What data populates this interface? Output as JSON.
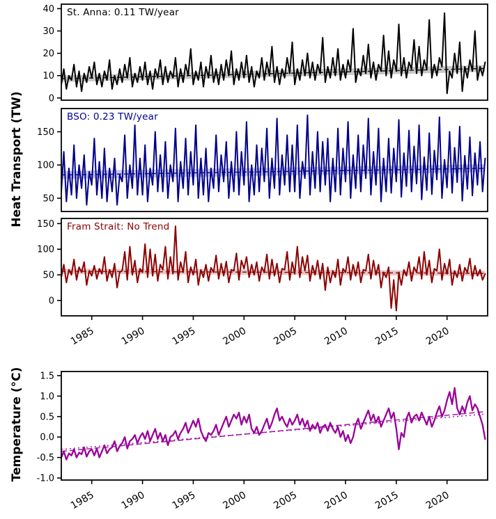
{
  "labels": {
    "heat_axis": "Heat Transport (TW)",
    "temp_axis": "Temperature (°C)"
  },
  "chart_data": {
    "type": "line",
    "x_range": [
      1982,
      2024
    ],
    "x_ticks": [
      1985,
      1990,
      1995,
      2000,
      2005,
      2010,
      2015,
      2020
    ],
    "x_tick_labels": [
      "1985",
      "1990",
      "1995",
      "2000",
      "2005",
      "2010",
      "2015",
      "2020"
    ],
    "panels": [
      {
        "name": "st-anna",
        "annotation": "St. Anna: 0.11 TW/year",
        "color": "#000000",
        "ylim": [
          -1,
          42
        ],
        "yticks": [
          0,
          10,
          20,
          30,
          40
        ],
        "ytick_labels": [
          "0",
          "10",
          "20",
          "30",
          "40"
        ],
        "x_start": 1982,
        "x_step": 0.25,
        "trends": [
          {
            "start": 8.6,
            "end": 13.2,
            "band": 1.5,
            "dash": "6,4"
          }
        ],
        "values": [
          6,
          13,
          4,
          10,
          8,
          15,
          5,
          12,
          3,
          11,
          7,
          14,
          9,
          16,
          6,
          11,
          5,
          12,
          8,
          17,
          4,
          10,
          6,
          13,
          7,
          15,
          9,
          18,
          5,
          11,
          7,
          14,
          8,
          16,
          6,
          12,
          4,
          13,
          9,
          17,
          6,
          14,
          7,
          12,
          9,
          18,
          5,
          13,
          7,
          15,
          10,
          22,
          6,
          12,
          8,
          16,
          5,
          14,
          9,
          19,
          7,
          13,
          6,
          15,
          8,
          17,
          10,
          21,
          6,
          13,
          8,
          16,
          9,
          19,
          7,
          14,
          5,
          12,
          9,
          18,
          8,
          16,
          10,
          23,
          7,
          14,
          6,
          13,
          9,
          18,
          11,
          25,
          6,
          13,
          8,
          17,
          10,
          20,
          9,
          16,
          8,
          15,
          11,
          27,
          7,
          14,
          9,
          18,
          10,
          22,
          8,
          15,
          9,
          17,
          12,
          31,
          7,
          13,
          10,
          19,
          11,
          24,
          9,
          16,
          8,
          15,
          12,
          28,
          10,
          21,
          9,
          17,
          12,
          33,
          10,
          18,
          9,
          16,
          13,
          26,
          11,
          23,
          10,
          17,
          13,
          35,
          9,
          15,
          10,
          18,
          14,
          38,
          2,
          12,
          9,
          20,
          11,
          25,
          3,
          14,
          9,
          17,
          12,
          30,
          8,
          14,
          10,
          16
        ]
      },
      {
        "name": "bso",
        "annotation": "BSO: 0.23 TW/year",
        "color": "#00008B",
        "ylim": [
          30,
          185
        ],
        "yticks": [
          50,
          100,
          150
        ],
        "ytick_labels": [
          "50",
          "100",
          "150"
        ],
        "x_start": 1982,
        "x_step": 0.25,
        "trends": [
          {
            "start": 85,
            "end": 95,
            "band": 6,
            "dash": "6,4"
          }
        ],
        "values": [
          60,
          120,
          45,
          95,
          55,
          130,
          50,
          100,
          65,
          115,
          40,
          90,
          70,
          140,
          55,
          105,
          50,
          125,
          45,
          95,
          60,
          110,
          40,
          85,
          75,
          145,
          50,
          100,
          65,
          160,
          55,
          110,
          55,
          130,
          45,
          95,
          70,
          150,
          60,
          115,
          60,
          135,
          50,
          100,
          75,
          155,
          45,
          105,
          65,
          140,
          55,
          120,
          70,
          160,
          50,
          110,
          55,
          125,
          45,
          95,
          65,
          145,
          60,
          115,
          75,
          135,
          50,
          105,
          60,
          150,
          55,
          120,
          70,
          165,
          45,
          100,
          55,
          130,
          60,
          125,
          75,
          155,
          50,
          110,
          65,
          170,
          55,
          115,
          70,
          145,
          60,
          130,
          60,
          160,
          50,
          105,
          80,
          175,
          55,
          120,
          65,
          150,
          60,
          135,
          70,
          140,
          45,
          110,
          60,
          155,
          55,
          125,
          75,
          165,
          50,
          115,
          65,
          145,
          60,
          130,
          80,
          170,
          55,
          120,
          70,
          155,
          45,
          110,
          60,
          140,
          58,
          125,
          75,
          168,
          52,
          118,
          68,
          152,
          60,
          128,
          72,
          160,
          48,
          112,
          62,
          148,
          56,
          122,
          78,
          172,
          50,
          108,
          66,
          150,
          58,
          126,
          74,
          158,
          46,
          114,
          64,
          142,
          54,
          118,
          70,
          135,
          60,
          110
        ]
      },
      {
        "name": "fram",
        "annotation": "Fram Strait: No Trend",
        "color": "#8B0000",
        "ylim": [
          -30,
          160
        ],
        "yticks": [
          0,
          50,
          100,
          150
        ],
        "ytick_labels": [
          "0",
          "50",
          "100",
          "150"
        ],
        "x_start": 1982,
        "x_step": 0.25,
        "trends": [
          {
            "start": 57,
            "end": 53,
            "band": 5,
            "dash": "6,4"
          }
        ],
        "values": [
          45,
          70,
          35,
          60,
          50,
          80,
          40,
          65,
          55,
          75,
          30,
          58,
          48,
          68,
          42,
          62,
          52,
          85,
          38,
          60,
          45,
          72,
          25,
          55,
          58,
          95,
          40,
          105,
          50,
          78,
          35,
          62,
          55,
          110,
          45,
          100,
          48,
          90,
          38,
          70,
          60,
          105,
          42,
          85,
          52,
          145,
          40,
          75,
          55,
          95,
          35,
          65,
          50,
          80,
          30,
          60,
          45,
          70,
          38,
          64,
          55,
          88,
          42,
          72,
          48,
          76,
          35,
          60,
          58,
          92,
          40,
          78,
          62,
          85,
          45,
          70,
          50,
          75,
          38,
          65,
          55,
          90,
          42,
          80,
          48,
          72,
          35,
          62,
          60,
          95,
          40,
          75,
          52,
          105,
          45,
          85,
          58,
          88,
          38,
          68,
          50,
          78,
          42,
          72,
          20,
          65,
          35,
          58,
          45,
          80,
          30,
          62,
          55,
          85,
          40,
          70,
          48,
          75,
          35,
          60,
          58,
          90,
          42,
          78,
          50,
          70,
          25,
          55,
          45,
          65,
          -15,
          40,
          -20,
          55,
          30,
          60,
          48,
          75,
          38,
          65,
          55,
          85,
          42,
          95,
          50,
          78,
          35,
          62,
          58,
          100,
          40,
          72,
          52,
          80,
          30,
          58,
          45,
          70,
          38,
          64,
          55,
          82,
          42,
          68,
          48,
          60,
          40,
          52
        ]
      },
      {
        "name": "temp",
        "annotation": "",
        "color": "#990099",
        "ylim": [
          -1.05,
          1.6
        ],
        "yticks": [
          -1.0,
          -0.5,
          0.0,
          0.5,
          1.0,
          1.5
        ],
        "ytick_labels": [
          "-1.0",
          "-0.5",
          "0.0",
          "0.5",
          "1.0",
          "1.5"
        ],
        "x_start": 1982,
        "x_step": 0.25,
        "trends": [
          {
            "start": -0.35,
            "end": 0.62,
            "band": 0,
            "dash": "8,4"
          },
          {
            "start": -0.3,
            "end": 0.56,
            "band": 0,
            "dash": "2,4"
          }
        ],
        "values": [
          -0.5,
          -0.35,
          -0.55,
          -0.4,
          -0.45,
          -0.3,
          -0.5,
          -0.38,
          -0.42,
          -0.25,
          -0.48,
          -0.35,
          -0.3,
          -0.45,
          -0.28,
          -0.5,
          -0.35,
          -0.2,
          -0.4,
          -0.3,
          -0.25,
          -0.1,
          -0.35,
          -0.22,
          -0.15,
          0,
          -0.28,
          -0.1,
          -0.05,
          0.05,
          -0.15,
          0,
          0.1,
          -0.05,
          0.15,
          -0.1,
          0.05,
          0.2,
          -0.05,
          0.1,
          -0.1,
          0.05,
          -0.2,
          0,
          0.05,
          0.15,
          -0.05,
          0.1,
          0.2,
          0.35,
          0.1,
          0.25,
          0.4,
          0.25,
          0.45,
          0.15,
          0,
          -0.1,
          0.1,
          0.05,
          0.15,
          0.3,
          0.05,
          0.2,
          0.35,
          0.5,
          0.25,
          0.4,
          0.55,
          0.45,
          0.6,
          0.3,
          0.5,
          0.35,
          0.55,
          0.2,
          0.1,
          0.25,
          0.05,
          0.15,
          0.3,
          0.45,
          0.2,
          0.35,
          0.55,
          0.7,
          0.4,
          0.5,
          0.35,
          0.25,
          0.45,
          0.3,
          0.4,
          0.55,
          0.3,
          0.45,
          0.25,
          0.4,
          0.15,
          0.3,
          0.2,
          0.35,
          0.1,
          0.25,
          0.3,
          0.15,
          0.35,
          0.2,
          0.1,
          0.25,
          0,
          0.15,
          -0.1,
          0.05,
          -0.15,
          0,
          0.3,
          0.45,
          0.2,
          0.35,
          0.5,
          0.65,
          0.4,
          0.55,
          0.35,
          0.5,
          0.25,
          0.4,
          0.55,
          0.7,
          0.45,
          0.6,
          0.2,
          -0.3,
          0.1,
          0,
          0.45,
          0.6,
          0.35,
          0.5,
          0.55,
          0.4,
          0.6,
          0.45,
          0.3,
          0.5,
          0.25,
          0.4,
          0.6,
          0.75,
          0.5,
          0.65,
          0.9,
          1.1,
          0.8,
          1.2,
          0.7,
          0.55,
          0.75,
          0.6,
          0.85,
          1.0,
          0.65,
          0.8,
          0.7,
          0.5,
          0.3,
          -0.05
        ]
      }
    ]
  }
}
